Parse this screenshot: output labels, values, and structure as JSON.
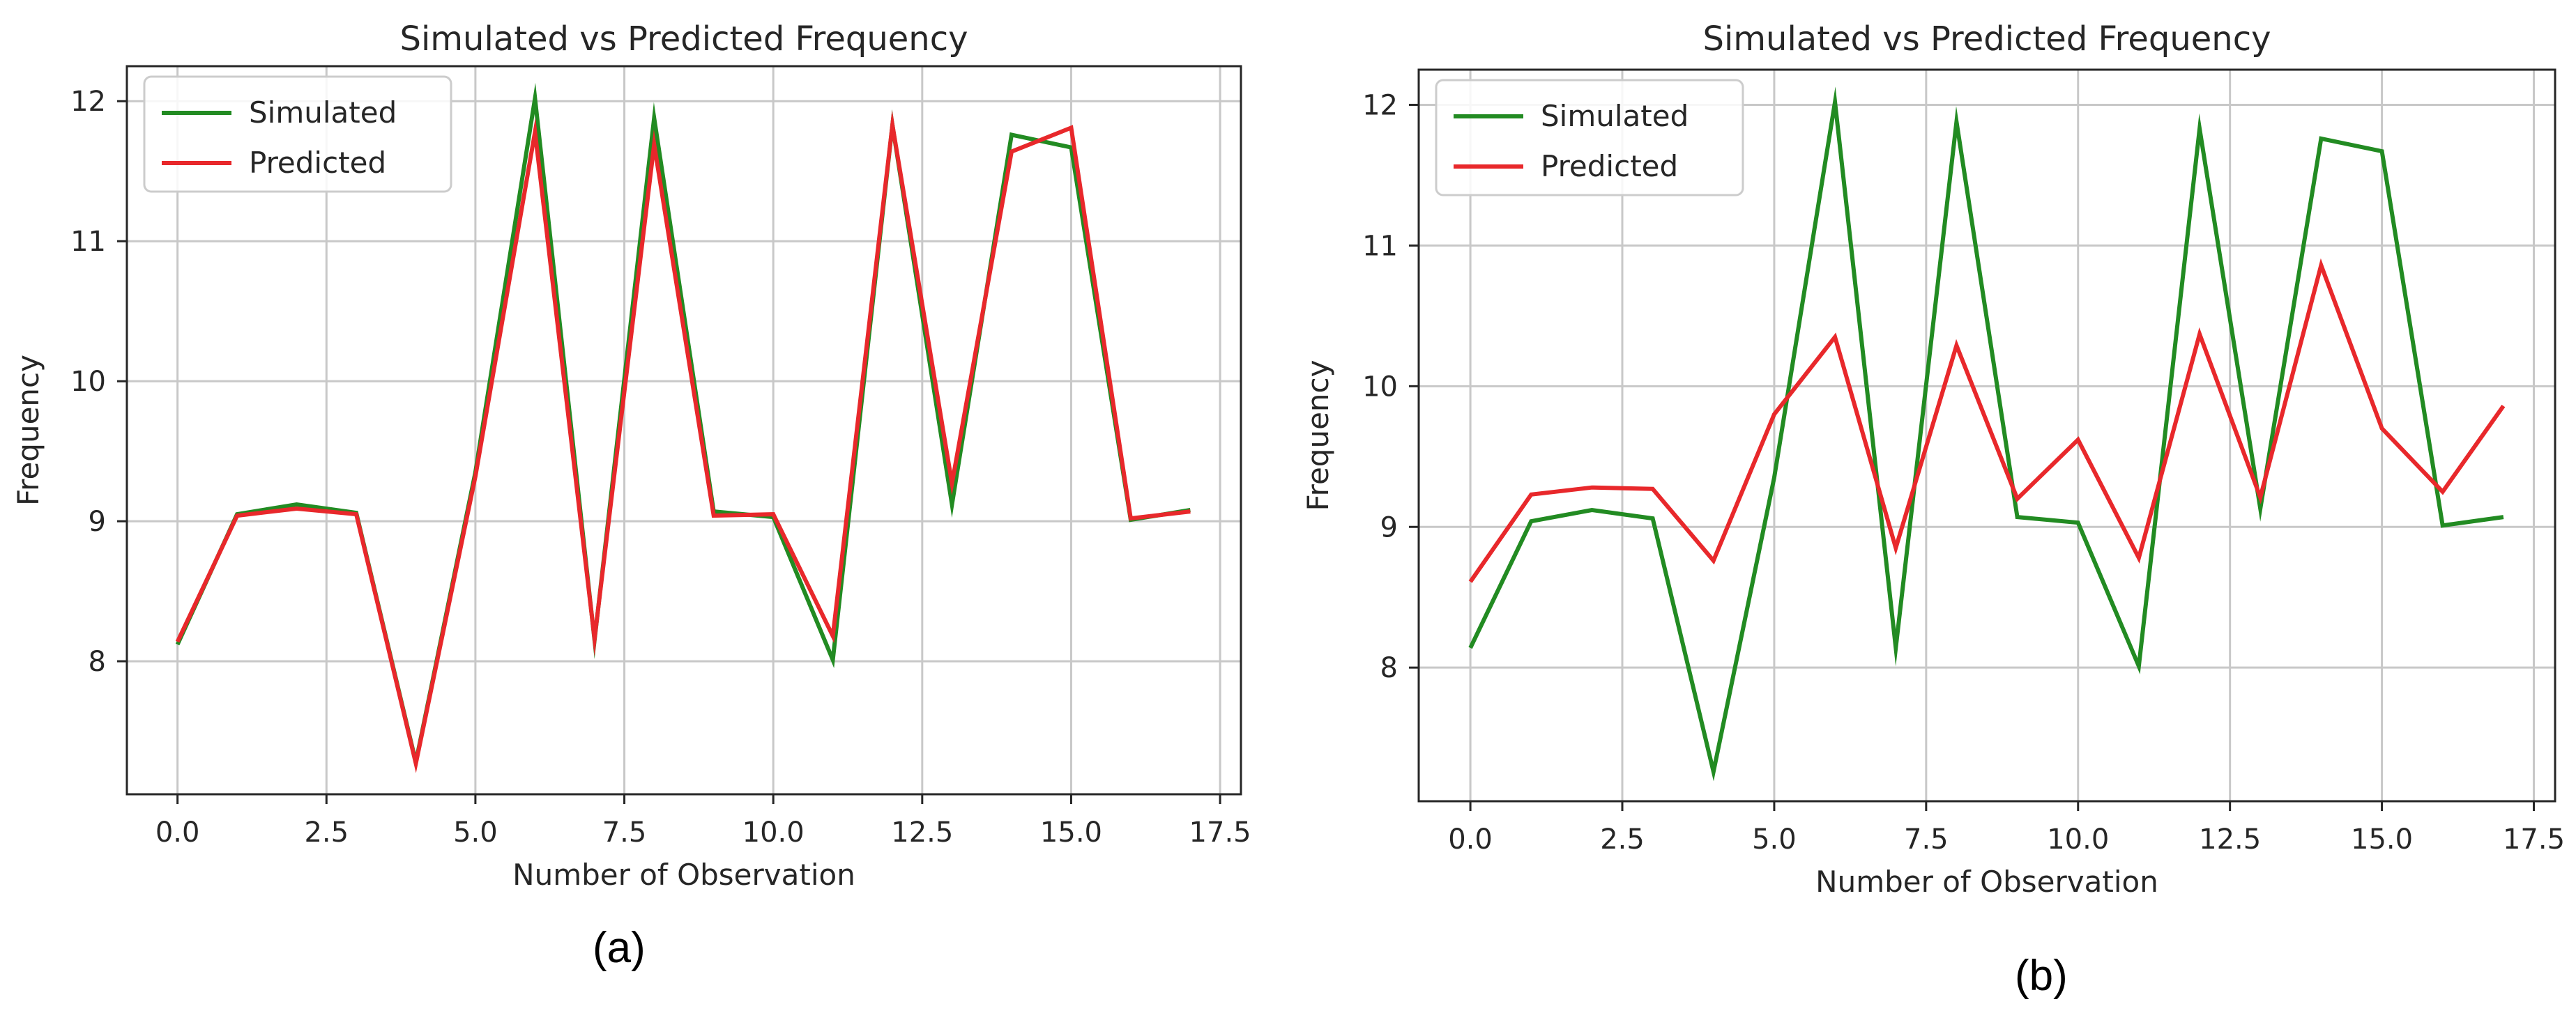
{
  "chart_data": [
    {
      "type": "line",
      "panel_label": "(a)",
      "title": "Simulated vs Predicted Frequency",
      "xlabel": "Number of Observation",
      "ylabel": "Frequency",
      "xlim": [
        -0.85,
        17.85
      ],
      "ylim": [
        7.05,
        12.25
      ],
      "xticks": [
        "0.0",
        "2.5",
        "5.0",
        "7.5",
        "10.0",
        "12.5",
        "15.0",
        "17.5"
      ],
      "yticks": [
        "8",
        "9",
        "10",
        "11",
        "12"
      ],
      "grid": true,
      "legend": "top-left",
      "x": [
        0,
        1,
        2,
        3,
        4,
        5,
        6,
        7,
        8,
        9,
        10,
        11,
        12,
        13,
        14,
        15,
        16,
        17
      ],
      "series": [
        {
          "name": "Simulated",
          "color": "#228B22",
          "values": [
            8.12,
            9.05,
            9.12,
            9.06,
            7.28,
            9.35,
            12.02,
            8.15,
            11.88,
            9.07,
            9.03,
            8.01,
            11.83,
            9.12,
            11.76,
            11.67,
            9.01,
            9.08
          ]
        },
        {
          "name": "Predicted",
          "color": "#E8282B",
          "values": [
            8.14,
            9.04,
            9.09,
            9.05,
            7.27,
            9.32,
            11.78,
            8.16,
            11.69,
            9.04,
            9.05,
            8.18,
            11.83,
            9.27,
            11.64,
            11.81,
            9.02,
            9.07
          ]
        }
      ]
    },
    {
      "type": "line",
      "panel_label": "(b)",
      "title": "Simulated vs Predicted Frequency",
      "xlabel": "Number of Observation",
      "ylabel": "Frequency",
      "xlim": [
        -0.85,
        17.85
      ],
      "ylim": [
        7.05,
        12.25
      ],
      "xticks": [
        "0.0",
        "2.5",
        "5.0",
        "7.5",
        "10.0",
        "12.5",
        "15.0",
        "17.5"
      ],
      "yticks": [
        "8",
        "9",
        "10",
        "11",
        "12"
      ],
      "grid": true,
      "legend": "top-left",
      "x": [
        0,
        1,
        2,
        3,
        4,
        5,
        6,
        7,
        8,
        9,
        10,
        11,
        12,
        13,
        14,
        15,
        16,
        17
      ],
      "series": [
        {
          "name": "Simulated",
          "color": "#228B22",
          "values": [
            8.14,
            9.04,
            9.12,
            9.06,
            7.26,
            9.35,
            12.02,
            8.14,
            11.88,
            9.07,
            9.03,
            8.01,
            11.83,
            9.13,
            11.76,
            11.67,
            9.01,
            9.07
          ]
        },
        {
          "name": "Predicted",
          "color": "#E8282B",
          "values": [
            8.61,
            9.23,
            9.28,
            9.27,
            8.76,
            9.8,
            10.35,
            8.85,
            10.29,
            9.2,
            9.62,
            8.78,
            10.37,
            9.21,
            10.86,
            9.7,
            9.25,
            9.86
          ]
        }
      ]
    }
  ]
}
